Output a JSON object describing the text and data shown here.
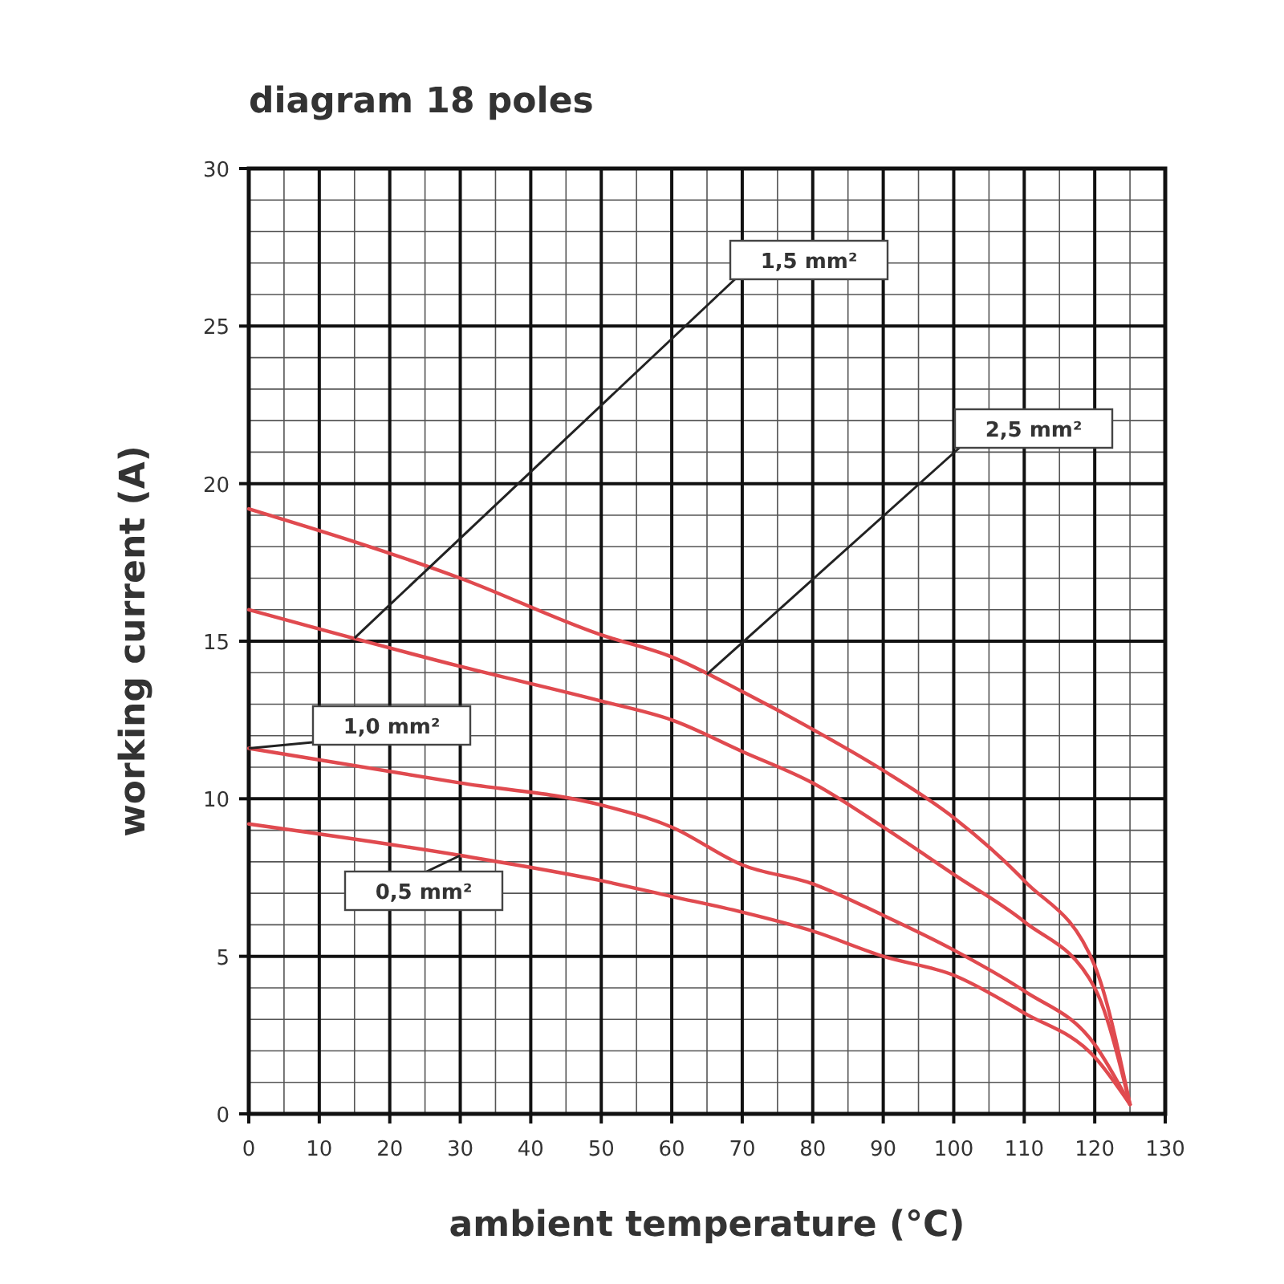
{
  "chart_data": {
    "type": "line",
    "title": "diagram 18 poles",
    "xlabel": "ambient temperature (°C)",
    "ylabel": "working current (A)",
    "x": [
      0,
      30,
      50,
      60,
      70,
      80,
      90,
      100,
      110,
      120,
      125
    ],
    "series": [
      {
        "name": "2,5 mm²",
        "color": "#e04a4f",
        "values": [
          19.2,
          17.0,
          15.2,
          14.5,
          13.4,
          12.2,
          10.9,
          9.4,
          7.4,
          4.7,
          0.3
        ]
      },
      {
        "name": "1,5 mm²",
        "color": "#e04a4f",
        "values": [
          16.0,
          14.2,
          13.1,
          12.5,
          11.5,
          10.5,
          9.1,
          7.6,
          6.1,
          4.0,
          0.3
        ]
      },
      {
        "name": "1,0 mm²",
        "color": "#e04a4f",
        "values": [
          11.6,
          10.5,
          9.8,
          9.1,
          7.9,
          7.3,
          6.3,
          5.2,
          3.9,
          2.2,
          0.3
        ]
      },
      {
        "name": "0,5 mm²",
        "color": "#e04a4f",
        "values": [
          9.2,
          8.2,
          7.4,
          6.9,
          6.4,
          5.8,
          5.0,
          4.4,
          3.2,
          1.8,
          0.3
        ]
      }
    ],
    "xlim": [
      0,
      130
    ],
    "xticks": [
      0,
      10,
      20,
      30,
      40,
      50,
      60,
      70,
      80,
      90,
      100,
      110,
      120,
      130
    ],
    "ylim": [
      0,
      30
    ],
    "yticks": [
      0,
      5,
      10,
      15,
      20,
      25,
      30
    ],
    "grid": true,
    "marker": "none",
    "line_style": "solid"
  }
}
